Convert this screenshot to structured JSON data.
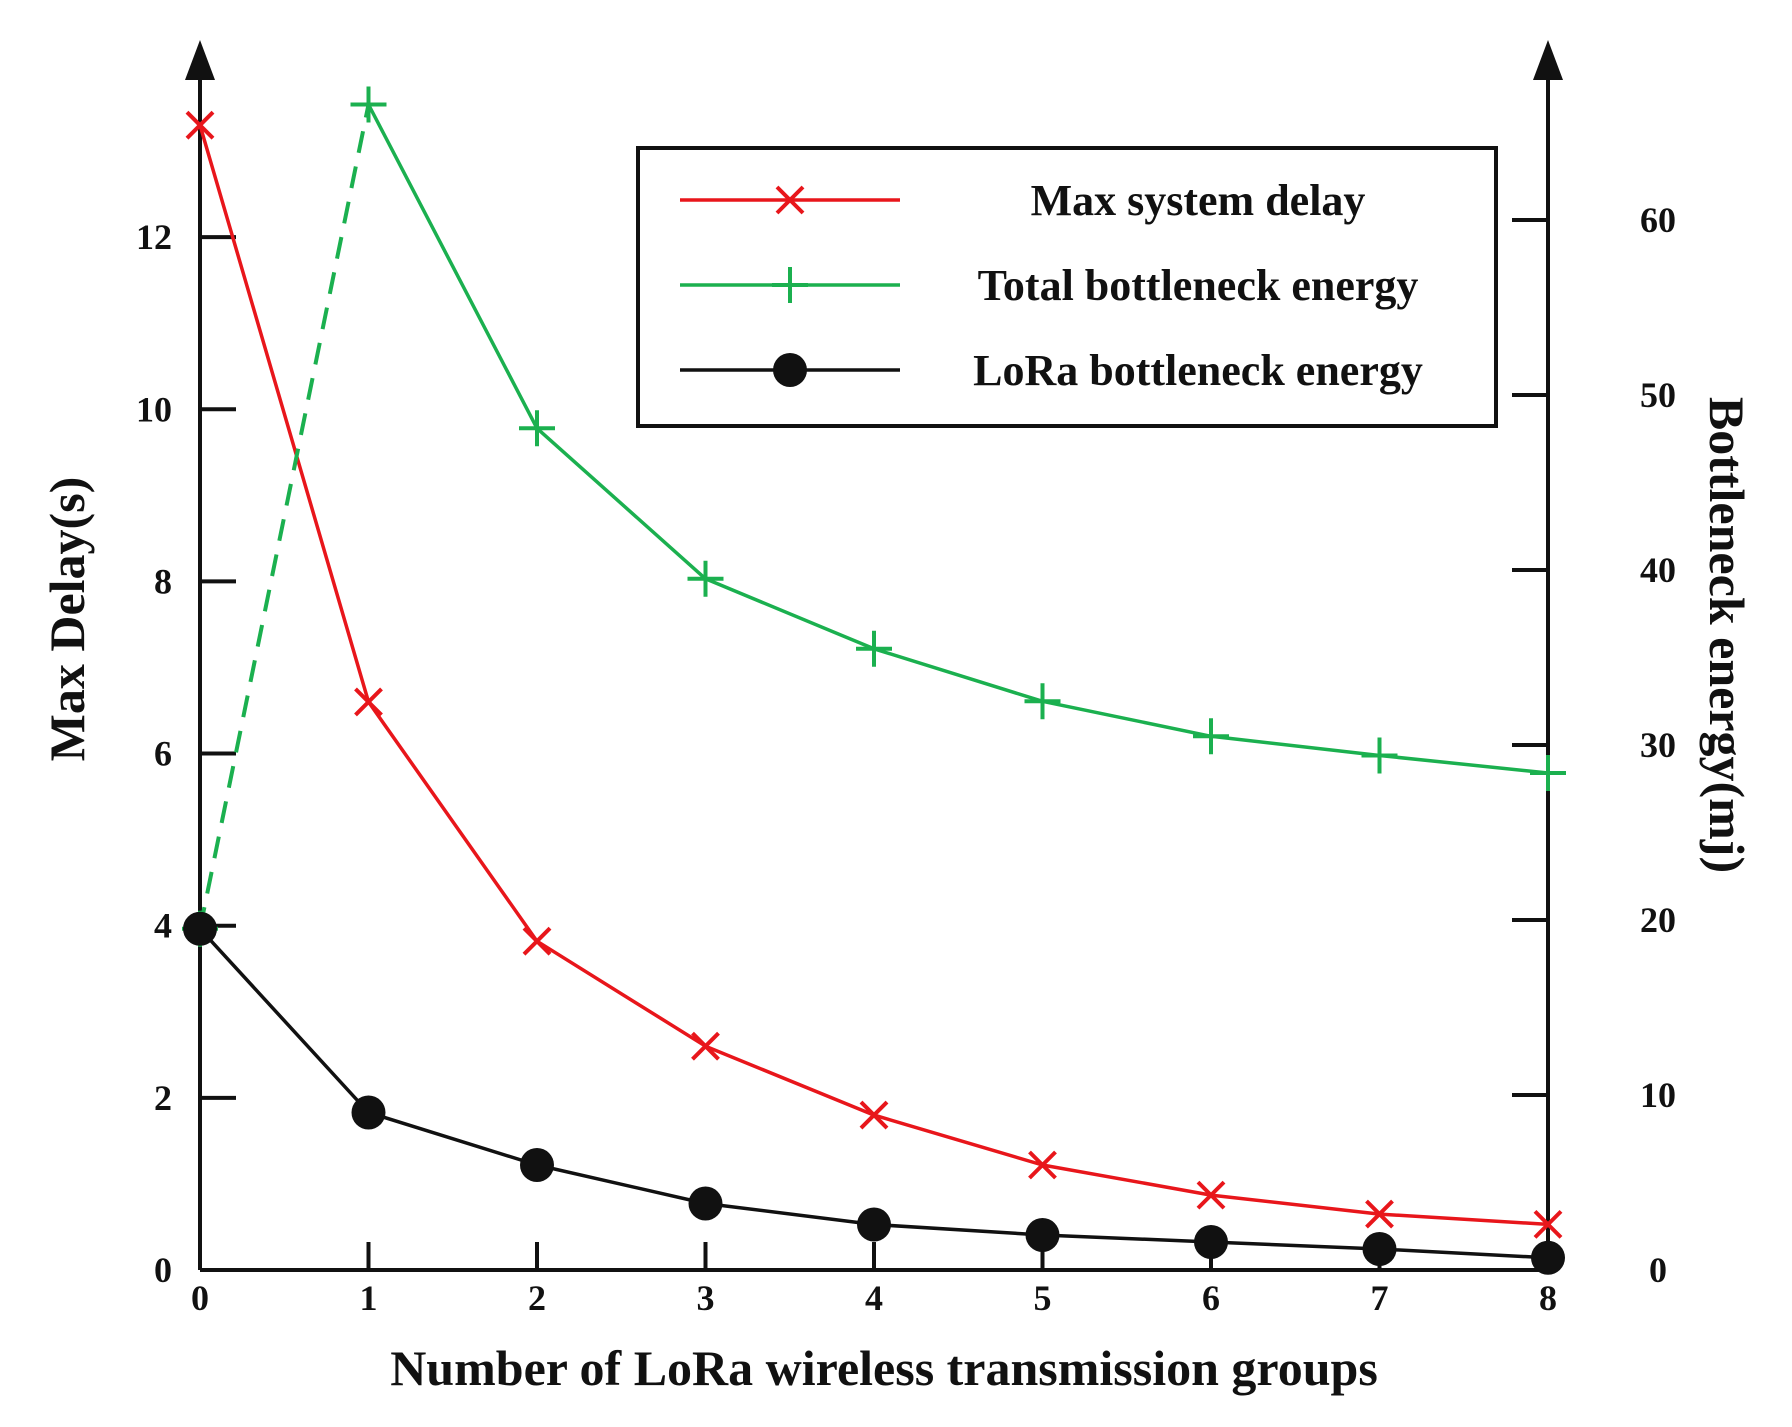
{
  "chart_data": {
    "type": "line",
    "title": "",
    "xlabel": "Number of LoRa wireless transmission groups",
    "ylabel_left": "Max Delay(s)",
    "ylabel_right": "Bottleneck energy(mj)",
    "x": [
      0,
      1,
      2,
      3,
      4,
      5,
      6,
      7,
      8
    ],
    "xticks": [
      "0",
      "1",
      "2",
      "3",
      "4",
      "5",
      "6",
      "7",
      "8"
    ],
    "xlim": [
      0,
      8
    ],
    "ylim_left": [
      0,
      13.5
    ],
    "yticks_left": [
      "0",
      "2",
      "4",
      "6",
      "8",
      "10",
      "12"
    ],
    "ylim_right": [
      0,
      68
    ],
    "yticks_right": [
      "0",
      "10",
      "20",
      "30",
      "40",
      "50",
      "60"
    ],
    "grid": false,
    "legend_position": "top-right",
    "series": [
      {
        "name": "Max system delay",
        "axis": "left",
        "color": "#e8161b",
        "marker": "x",
        "values": [
          13.3,
          6.6,
          3.82,
          2.6,
          1.8,
          1.22,
          0.87,
          0.65,
          0.53
        ]
      },
      {
        "name": "Total bottleneck energy",
        "axis": "right",
        "color": "#1bb04f",
        "marker": "plus",
        "dashed_first_segment": true,
        "values": [
          19.5,
          66.6,
          48.1,
          39.5,
          35.5,
          32.5,
          30.5,
          29.4,
          28.4
        ]
      },
      {
        "name": "LoRa bottleneck energy",
        "axis": "right",
        "color": "#111111",
        "marker": "circle",
        "values": [
          19.5,
          9.0,
          6.0,
          3.8,
          2.6,
          2.0,
          1.6,
          1.2,
          0.7
        ]
      }
    ]
  }
}
